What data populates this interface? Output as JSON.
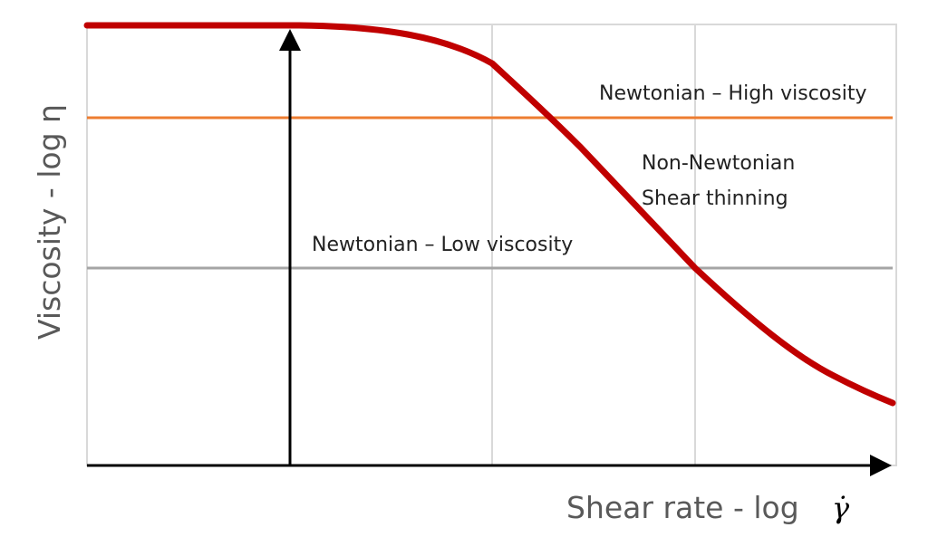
{
  "diagram": {
    "y_axis_label": "Viscosity - log η",
    "x_axis_label": "Shear rate - log",
    "x_axis_symbol": "γ̇",
    "annotations": {
      "high_viscosity": "Newtonian – High viscosity",
      "low_viscosity": "Newtonian – Low viscosity",
      "non_newtonian_line1": "Non-Newtonian",
      "non_newtonian_line2": "Shear thinning"
    },
    "colors": {
      "shear_thinning_curve": "#c00000",
      "high_viscosity_line": "#ed7d31",
      "low_viscosity_line": "#a5a5a5",
      "gridlines": "#d9d9d9",
      "axes": "#000000",
      "axis_text": "#595959"
    }
  }
}
